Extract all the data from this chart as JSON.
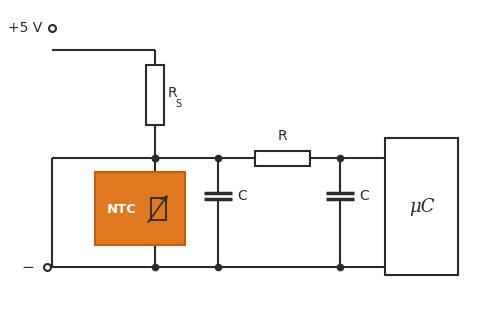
{
  "bg_color": "#ffffff",
  "line_color": "#2a2a2a",
  "orange_color": "#E07820",
  "orange_edge": "#c06010",
  "line_width": 1.5,
  "plus5v_label": "+5 V",
  "minus_label": "−",
  "rs_label": "R",
  "rs_sub": "S",
  "r_label": "R",
  "c1_label": "C",
  "c2_label": "C",
  "ntc_label": "NTC",
  "uc_label": "μC",
  "figsize": [
    4.9,
    3.17
  ],
  "dpi": 100
}
